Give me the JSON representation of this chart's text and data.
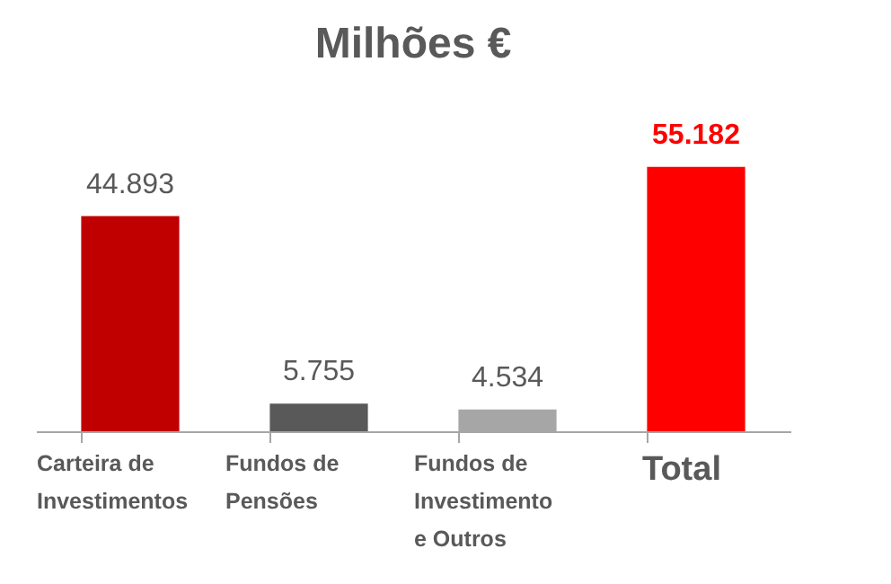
{
  "chart_data": {
    "type": "bar",
    "title": "Milhões €",
    "categories": [
      "Carteira de\nInvestimentos",
      "Fundos de\nPensões",
      "Fundos de\nInvestimento\ne  Outros",
      "Total"
    ],
    "values": [
      44893,
      5755,
      4534,
      55182
    ],
    "value_labels": [
      "44.893",
      "5.755",
      "4.534",
      "55.182"
    ],
    "colors": [
      "#c00000",
      "#595959",
      "#a6a6a6",
      "#ff0000"
    ]
  }
}
